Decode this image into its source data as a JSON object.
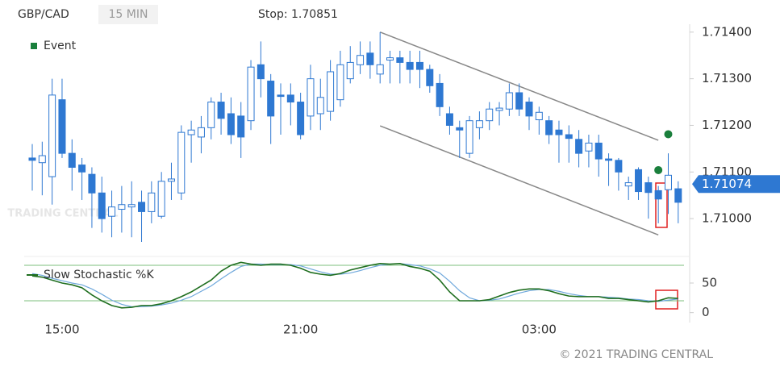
{
  "header": {
    "symbol": "GBP/CAD",
    "interval": "15 MIN",
    "stop": "Stop: 1.70851"
  },
  "copyright": "© 2021 TRADING CENTRAL",
  "watermark": "TRADING CENTRAL",
  "chart_data": [
    {
      "type": "candlestick",
      "categories": [
        null,
        null,
        null,
        "15:00",
        null,
        null,
        null,
        null,
        null,
        null,
        null,
        null,
        null,
        null,
        null,
        null,
        null,
        null,
        null,
        null,
        null,
        null,
        null,
        null,
        null,
        null,
        null,
        "21:00",
        null,
        null,
        null,
        null,
        null,
        null,
        null,
        null,
        null,
        null,
        null,
        null,
        null,
        null,
        null,
        null,
        null,
        null,
        null,
        null,
        null,
        null,
        null,
        "03:00",
        null,
        null,
        null,
        null,
        null,
        null,
        null,
        null,
        null,
        null,
        null,
        null,
        null,
        null
      ],
      "open": [
        1.7113,
        1.7112,
        1.7109,
        1.71255,
        1.7114,
        1.71115,
        1.71095,
        1.71055,
        1.71005,
        1.7102,
        1.71025,
        1.71035,
        1.71015,
        1.71005,
        1.7108,
        1.71055,
        1.7118,
        1.71175,
        1.71195,
        1.7125,
        1.71225,
        1.7122,
        1.7121,
        1.7133,
        1.71295,
        1.71265,
        1.71265,
        1.7125,
        1.7122,
        1.71225,
        1.7123,
        1.71255,
        1.713,
        1.7133,
        1.71355,
        1.7131,
        1.7134,
        1.71345,
        1.71335,
        1.71335,
        1.7132,
        1.7129,
        1.71225,
        1.71195,
        1.7114,
        1.71195,
        1.7121,
        1.71232,
        1.71235,
        1.7127,
        1.7125,
        1.71212,
        1.7121,
        1.7119,
        1.7118,
        1.7117,
        1.71145,
        1.71162,
        1.71128,
        1.71125,
        1.7107,
        1.71105,
        1.71077,
        1.7106,
        1.71062,
        1.71064
      ],
      "high": [
        1.7116,
        1.71165,
        1.713,
        1.713,
        1.7117,
        1.7113,
        1.7111,
        1.7109,
        1.7106,
        1.7107,
        1.7108,
        1.7106,
        1.7108,
        1.711,
        1.7112,
        1.712,
        1.7121,
        1.7122,
        1.7126,
        1.7127,
        1.7126,
        1.7125,
        1.7134,
        1.7138,
        1.7131,
        1.7129,
        1.7129,
        1.7127,
        1.7133,
        1.713,
        1.7134,
        1.7136,
        1.7137,
        1.7138,
        1.7138,
        1.714,
        1.7136,
        1.7136,
        1.7136,
        1.7136,
        1.7133,
        1.7131,
        1.7124,
        1.7121,
        1.7122,
        1.7123,
        1.7125,
        1.7125,
        1.7129,
        1.7129,
        1.7126,
        1.7124,
        1.7122,
        1.7121,
        1.712,
        1.7119,
        1.7118,
        1.7118,
        1.7114,
        1.7113,
        1.7109,
        1.7111,
        1.7109,
        1.7107,
        1.7114,
        1.7108
      ],
      "low": [
        1.7106,
        1.7105,
        1.7103,
        1.7113,
        1.7106,
        1.7104,
        1.7098,
        1.7097,
        1.7096,
        1.7097,
        1.7096,
        1.7095,
        1.7099,
        1.71,
        1.7104,
        1.7104,
        1.7112,
        1.7114,
        1.7117,
        1.7118,
        1.7116,
        1.7113,
        1.7119,
        1.7126,
        1.7116,
        1.7118,
        1.712,
        1.7117,
        1.7119,
        1.7119,
        1.7121,
        1.7124,
        1.7129,
        1.7131,
        1.713,
        1.7129,
        1.7129,
        1.7129,
        1.7129,
        1.7128,
        1.7127,
        1.7122,
        1.7118,
        1.7113,
        1.7113,
        1.7117,
        1.7119,
        1.712,
        1.7122,
        1.7122,
        1.7119,
        1.7118,
        1.7116,
        1.7112,
        1.7112,
        1.7111,
        1.7111,
        1.7109,
        1.7107,
        1.7106,
        1.7104,
        1.7104,
        1.71,
        1.7099,
        1.7101,
        1.7099
      ],
      "close": [
        1.71125,
        1.71135,
        1.71265,
        1.7114,
        1.7111,
        1.711,
        1.71055,
        1.71,
        1.71025,
        1.7103,
        1.7103,
        1.71015,
        1.71055,
        1.7108,
        1.71085,
        1.71185,
        1.7119,
        1.71195,
        1.7125,
        1.71215,
        1.7118,
        1.71175,
        1.71325,
        1.713,
        1.7122,
        1.71262,
        1.7125,
        1.7118,
        1.713,
        1.7126,
        1.71315,
        1.7133,
        1.71335,
        1.7135,
        1.7133,
        1.7133,
        1.71345,
        1.71335,
        1.7132,
        1.7132,
        1.71285,
        1.7124,
        1.712,
        1.7119,
        1.7121,
        1.7121,
        1.71235,
        1.71237,
        1.7127,
        1.71235,
        1.7122,
        1.71228,
        1.7118,
        1.7118,
        1.71172,
        1.7114,
        1.71162,
        1.71128,
        1.71125,
        1.711,
        1.71077,
        1.71058,
        1.71056,
        1.71042,
        1.71093,
        1.71035
      ],
      "up_color": "#ffffff",
      "down_color": "#2e78d2",
      "wick_color": "#2e78d2",
      "ylim": [
        1.7095,
        1.71417
      ],
      "yticks": [
        {
          "value": 1.71,
          "label": "1.71000"
        },
        {
          "value": 1.711,
          "label": "1.71100"
        },
        {
          "value": 1.712,
          "label": "1.71200"
        },
        {
          "value": 1.713,
          "label": "1.71300"
        },
        {
          "value": 1.714,
          "label": "1.71400"
        }
      ],
      "last_price": 1.71074,
      "last_price_color": "#2e78d2",
      "events": {
        "name": "Event",
        "color": "#1a7f3c",
        "x": [
          63,
          64
        ],
        "values": [
          1.71104,
          1.71181
        ]
      },
      "channel": {
        "color": "#888888",
        "lines": [
          {
            "x": [
              35,
              63
            ],
            "values": [
              1.714,
              1.71168
            ]
          },
          {
            "x": [
              35,
              63
            ],
            "values": [
              1.71199,
              1.70965
            ]
          }
        ]
      }
    },
    {
      "type": "line",
      "series": [
        {
          "name": "Slow Stochastic %K",
          "color": "#1f6e1f",
          "values": [
            62,
            60,
            55,
            50,
            47,
            42,
            30,
            20,
            12,
            8,
            9,
            12,
            12,
            15,
            20,
            27,
            35,
            45,
            55,
            70,
            80,
            85,
            82,
            80,
            82,
            82,
            80,
            75,
            68,
            65,
            63,
            66,
            72,
            76,
            80,
            83,
            82,
            83,
            78,
            75,
            70,
            55,
            35,
            20,
            20,
            20,
            22,
            28,
            34,
            38,
            40,
            40,
            37,
            32,
            28,
            27,
            27,
            27,
            24,
            24,
            22,
            20,
            18,
            20,
            25,
            24
          ]
        },
        {
          "color": "#6fa8dc",
          "values": [
            66,
            63,
            58,
            54,
            50,
            47,
            40,
            31,
            21,
            14,
            10,
            10,
            11,
            13,
            16,
            21,
            27,
            36,
            45,
            57,
            68,
            78,
            82,
            82,
            81,
            81,
            81,
            79,
            74,
            69,
            65,
            65,
            67,
            71,
            76,
            80,
            82,
            83,
            81,
            79,
            74,
            67,
            53,
            37,
            25,
            20,
            21,
            23,
            28,
            33,
            37,
            39,
            39,
            36,
            32,
            29,
            27,
            27,
            26,
            25,
            23,
            22,
            20,
            19,
            21,
            23
          ]
        }
      ],
      "levels": [
        20,
        80
      ],
      "level_color": "#7cbf7c",
      "ylim": [
        -10,
        95
      ],
      "yticks": [
        0,
        50
      ]
    }
  ]
}
